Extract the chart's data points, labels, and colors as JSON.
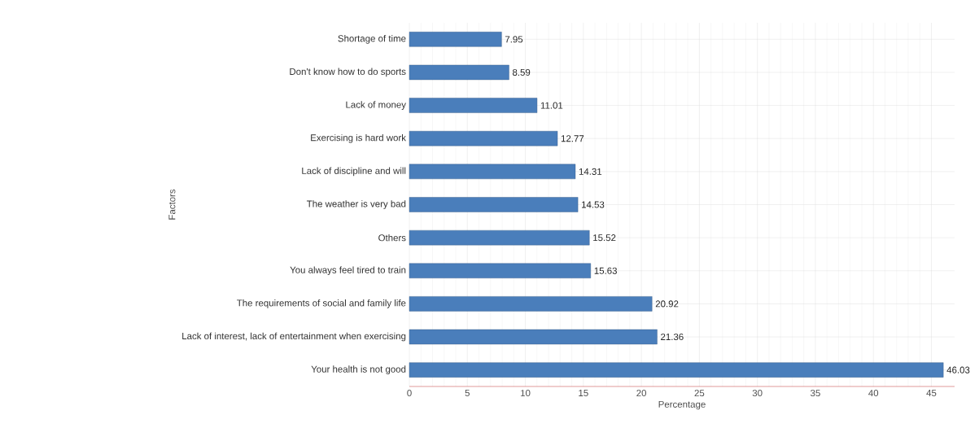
{
  "chart_data": {
    "type": "bar",
    "orientation": "horizontal",
    "xlabel": "Percentage",
    "ylabel": "Factors",
    "categories": [
      "Shortage of time",
      "Don't know how to do sports",
      "Lack of money",
      "Exercising is hard work",
      "Lack of discipline and will",
      "The weather is very bad",
      "Others",
      "You always feel tired to train",
      "The requirements of social and family life",
      "Lack of interest, lack of entertainment when exercising",
      "Your health is not good"
    ],
    "values": [
      7.95,
      8.59,
      11.01,
      12.77,
      14.31,
      14.53,
      15.52,
      15.63,
      20.92,
      21.36,
      46.03
    ],
    "color": "#4a7ebb",
    "data_labels": true,
    "grid": true,
    "xlim": [
      0,
      47
    ],
    "xticks": [
      0,
      5,
      10,
      15,
      20,
      25,
      30,
      35,
      40,
      45
    ]
  }
}
